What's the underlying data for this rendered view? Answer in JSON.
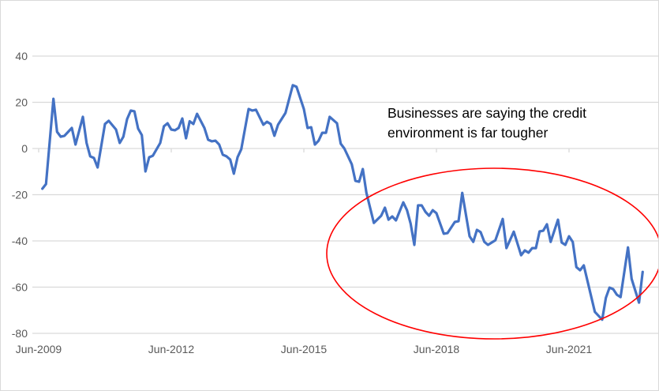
{
  "chart_data": {
    "type": "line",
    "title": "",
    "xlabel": "",
    "ylabel": "",
    "ylim": [
      -80,
      40
    ],
    "yticks": [
      40,
      20,
      0,
      -20,
      -40,
      -60,
      -80
    ],
    "xticks": [
      "Jun-2009",
      "Jun-2012",
      "Jun-2015",
      "Jun-2018",
      "Jun-2021"
    ],
    "grid": true,
    "legend": "none",
    "line_color": "#4472C4",
    "annotation": {
      "line1": "Businesses are saying the credit",
      "line2": "environment is far tougher",
      "ellipse_color": "#FF0000"
    },
    "series": [
      {
        "points": [
          [
            "2009-07",
            -17.4
          ],
          [
            "2009-08",
            -15.4
          ],
          [
            "2009-10",
            21.5
          ],
          [
            "2009-11",
            7.2
          ],
          [
            "2009-12",
            5.1
          ],
          [
            "2010-01",
            5.5
          ],
          [
            "2010-03",
            8.9
          ],
          [
            "2010-04",
            1.7
          ],
          [
            "2010-06",
            13.7
          ],
          [
            "2010-07",
            2.4
          ],
          [
            "2010-08",
            -3.4
          ],
          [
            "2010-09",
            -4.1
          ],
          [
            "2010-10",
            -8.2
          ],
          [
            "2010-12",
            10.6
          ],
          [
            "2011-01",
            12.0
          ],
          [
            "2011-03",
            8.2
          ],
          [
            "2011-04",
            2.4
          ],
          [
            "2011-05",
            5.1
          ],
          [
            "2011-06",
            12.7
          ],
          [
            "2011-07",
            16.4
          ],
          [
            "2011-08",
            16.1
          ],
          [
            "2011-09",
            8.6
          ],
          [
            "2011-10",
            5.8
          ],
          [
            "2011-11",
            -9.9
          ],
          [
            "2011-12",
            -3.8
          ],
          [
            "2012-01",
            -3.1
          ],
          [
            "2012-03",
            2.4
          ],
          [
            "2012-04",
            9.6
          ],
          [
            "2012-05",
            10.9
          ],
          [
            "2012-06",
            8.2
          ],
          [
            "2012-07",
            7.9
          ],
          [
            "2012-08",
            8.9
          ],
          [
            "2012-09",
            13.0
          ],
          [
            "2012-10",
            4.4
          ],
          [
            "2012-11",
            11.8
          ],
          [
            "2012-12",
            10.6
          ],
          [
            "2013-01",
            15.0
          ],
          [
            "2013-03",
            8.9
          ],
          [
            "2013-04",
            3.8
          ],
          [
            "2013-05",
            3.1
          ],
          [
            "2013-06",
            3.4
          ],
          [
            "2013-07",
            1.7
          ],
          [
            "2013-08",
            -2.7
          ],
          [
            "2013-09",
            -3.4
          ],
          [
            "2013-10",
            -4.8
          ],
          [
            "2013-11",
            -10.9
          ],
          [
            "2013-12",
            -3.8
          ],
          [
            "2014-01",
            -0.3
          ],
          [
            "2014-03",
            17.1
          ],
          [
            "2014-04",
            16.4
          ],
          [
            "2014-05",
            16.8
          ],
          [
            "2014-07",
            10.3
          ],
          [
            "2014-08",
            11.6
          ],
          [
            "2014-09",
            10.6
          ],
          [
            "2014-10",
            5.5
          ],
          [
            "2014-11",
            10.3
          ],
          [
            "2015-01",
            15.4
          ],
          [
            "2015-03",
            27.4
          ],
          [
            "2015-04",
            26.7
          ],
          [
            "2015-06",
            17.1
          ],
          [
            "2015-07",
            8.9
          ],
          [
            "2015-08",
            9.2
          ],
          [
            "2015-09",
            1.7
          ],
          [
            "2015-10",
            3.4
          ],
          [
            "2015-11",
            6.8
          ],
          [
            "2015-12",
            6.8
          ],
          [
            "2016-01",
            13.7
          ],
          [
            "2016-03",
            10.9
          ],
          [
            "2016-04",
            2.1
          ],
          [
            "2016-05",
            0.0
          ],
          [
            "2016-06",
            -3.4
          ],
          [
            "2016-07",
            -6.8
          ],
          [
            "2016-08",
            -14.0
          ],
          [
            "2016-09",
            -14.4
          ],
          [
            "2016-10",
            -8.9
          ],
          [
            "2016-11",
            -19.2
          ],
          [
            "2017-01",
            -32.2
          ],
          [
            "2017-03",
            -29.1
          ],
          [
            "2017-04",
            -25.6
          ],
          [
            "2017-05",
            -30.8
          ],
          [
            "2017-06",
            -29.4
          ],
          [
            "2017-07",
            -31.1
          ],
          [
            "2017-09",
            -23.3
          ],
          [
            "2017-10",
            -26.7
          ],
          [
            "2017-11",
            -32.5
          ],
          [
            "2017-12",
            -41.7
          ],
          [
            "2018-01",
            -24.6
          ],
          [
            "2018-02",
            -24.6
          ],
          [
            "2018-03",
            -27.4
          ],
          [
            "2018-04",
            -29.1
          ],
          [
            "2018-05",
            -26.7
          ],
          [
            "2018-06",
            -28.0
          ],
          [
            "2018-08",
            -36.9
          ],
          [
            "2018-09",
            -36.6
          ],
          [
            "2018-11",
            -31.8
          ],
          [
            "2018-12",
            -31.5
          ],
          [
            "2019-01",
            -19.2
          ],
          [
            "2019-03",
            -38.0
          ],
          [
            "2019-04",
            -40.4
          ],
          [
            "2019-05",
            -35.2
          ],
          [
            "2019-06",
            -36.2
          ],
          [
            "2019-07",
            -40.4
          ],
          [
            "2019-08",
            -41.7
          ],
          [
            "2019-10",
            -39.7
          ],
          [
            "2019-12",
            -30.5
          ],
          [
            "2020-01",
            -43.1
          ],
          [
            "2020-03",
            -36.0
          ],
          [
            "2020-05",
            -46.2
          ],
          [
            "2020-06",
            -44.1
          ],
          [
            "2020-07",
            -45.1
          ],
          [
            "2020-08",
            -43.1
          ],
          [
            "2020-09",
            -43.1
          ],
          [
            "2020-10",
            -35.9
          ],
          [
            "2020-11",
            -35.6
          ],
          [
            "2020-12",
            -32.8
          ],
          [
            "2021-01",
            -40.4
          ],
          [
            "2021-03",
            -30.8
          ],
          [
            "2021-04",
            -40.7
          ],
          [
            "2021-05",
            -41.7
          ],
          [
            "2021-06",
            -38.0
          ],
          [
            "2021-07",
            -40.4
          ],
          [
            "2021-08",
            -51.3
          ],
          [
            "2021-09",
            -52.7
          ],
          [
            "2021-10",
            -50.6
          ],
          [
            "2022-01",
            -70.7
          ],
          [
            "2022-03",
            -74.1
          ],
          [
            "2022-04",
            -64.6
          ],
          [
            "2022-05",
            -60.2
          ],
          [
            "2022-06",
            -60.9
          ],
          [
            "2022-07",
            -63.3
          ],
          [
            "2022-08",
            -64.3
          ],
          [
            "2022-10",
            -42.8
          ],
          [
            "2022-11",
            -56.4
          ],
          [
            "2023-01",
            -66.7
          ],
          [
            "2023-02",
            -53.4
          ]
        ]
      }
    ]
  }
}
